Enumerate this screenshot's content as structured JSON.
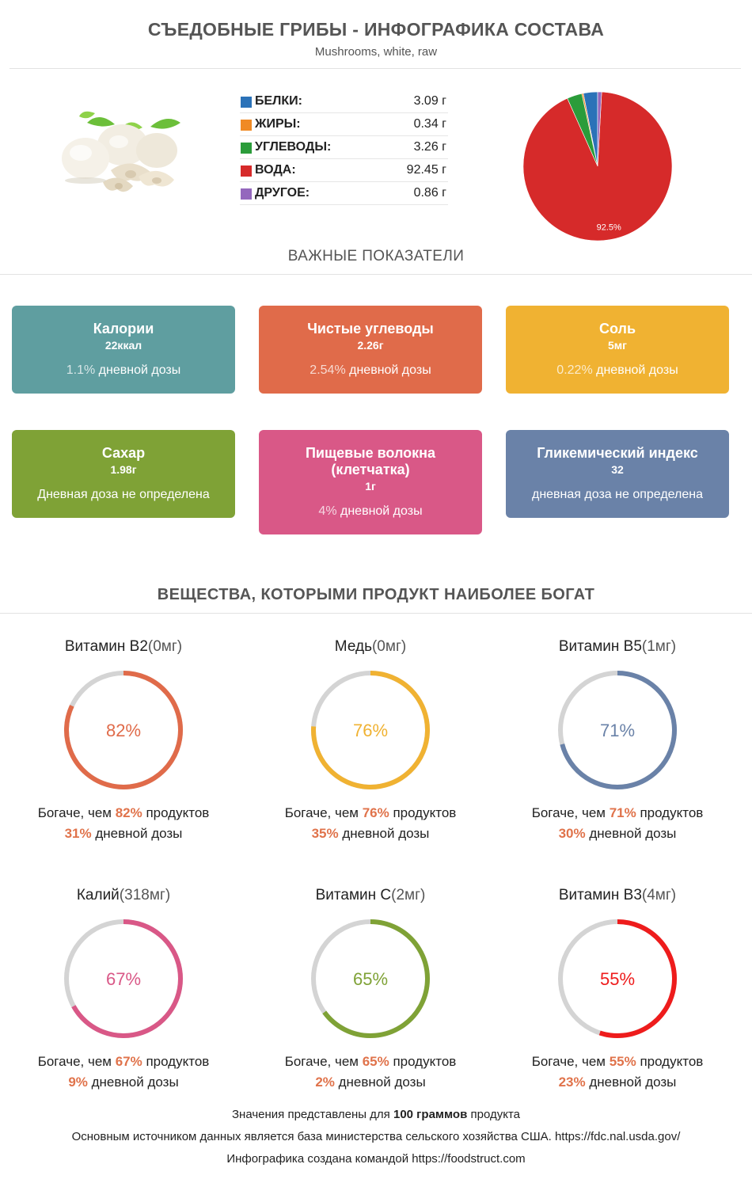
{
  "header": {
    "title": "СЪЕДОБНЫЕ ГРИБЫ - ИНФОГРАФИКА СОСТАВА",
    "subtitle": "Mushrooms, white, raw"
  },
  "macros": [
    {
      "name": "БЕЛКИ:",
      "value": "3.09 г",
      "color": "#2b72b8"
    },
    {
      "name": "ЖИРЫ:",
      "value": "0.34 г",
      "color": "#f08a24"
    },
    {
      "name": "УГЛЕВОДЫ:",
      "value": "3.26 г",
      "color": "#2b9c3a"
    },
    {
      "name": "ВОДА:",
      "value": "92.45 г",
      "color": "#d62a2a"
    },
    {
      "name": "ДРУГОЕ:",
      "value": "0.86 г",
      "color": "#9467bd"
    }
  ],
  "chart_data": {
    "type": "pie",
    "categories": [
      "БЕЛКИ",
      "ЖИРЫ",
      "УГЛЕВОДЫ",
      "ВОДА",
      "ДРУГОЕ"
    ],
    "values": [
      3.09,
      0.34,
      3.26,
      92.45,
      0.86
    ],
    "colors": [
      "#2b72b8",
      "#f08a24",
      "#2b9c3a",
      "#d62a2a",
      "#9467bd"
    ],
    "labels": [
      "",
      "",
      "",
      "92.5%",
      ""
    ]
  },
  "indicators_title": "ВАЖНЫЕ ПОКАЗАТЕЛИ",
  "cards": [
    {
      "title": "Калории",
      "value": "22ккал",
      "pct": "1.1%",
      "pct_text": " дневной дозы",
      "color": "#5f9ea0"
    },
    {
      "title": "Чистые углеводы",
      "value": "2.26г",
      "pct": "2.54%",
      "pct_text": " дневной дозы",
      "color": "#e06b4a"
    },
    {
      "title": "Соль",
      "value": "5мг",
      "pct": "0.22%",
      "pct_text": " дневной дозы",
      "color": "#f0b232"
    },
    {
      "title": "Сахар",
      "value": "1.98г",
      "pct": "",
      "pct_text": "Дневная доза не определена",
      "color": "#7fa236"
    },
    {
      "title": "Пищевые волокна (клетчатка)",
      "value": "1г",
      "pct": "4%",
      "pct_text": " дневной дозы",
      "color": "#d95887"
    },
    {
      "title": "Гликемический индекс",
      "value": "32",
      "pct": "",
      "pct_text": "дневная доза не определена",
      "color": "#6a82a8"
    }
  ],
  "rich_title": "ВЕЩЕСТВА, КОТОРЫМИ ПРОДУКТ НАИБОЛЕЕ БОГАТ",
  "rich": [
    {
      "name": "Витамин B2",
      "unit": "(0мг)",
      "percent": 82,
      "label": "82%",
      "richer": "82%",
      "daily": "31%",
      "color": "#e06b4a"
    },
    {
      "name": "Медь",
      "unit": "(0мг)",
      "percent": 76,
      "label": "76%",
      "richer": "76%",
      "daily": "35%",
      "color": "#f0b232"
    },
    {
      "name": "Витамин B5",
      "unit": "(1мг)",
      "percent": 71,
      "label": "71%",
      "richer": "71%",
      "daily": "30%",
      "color": "#6a82a8"
    },
    {
      "name": "Калий",
      "unit": "(318мг)",
      "percent": 67,
      "label": "67%",
      "richer": "67%",
      "daily": "9%",
      "color": "#d95887"
    },
    {
      "name": "Витамин C",
      "unit": "(2мг)",
      "percent": 65,
      "label": "65%",
      "richer": "65%",
      "daily": "2%",
      "color": "#7fa236"
    },
    {
      "name": "Витамин B3",
      "unit": "(4мг)",
      "percent": 55,
      "label": "55%",
      "richer": "55%",
      "daily": "23%",
      "color": "#ee1c1c"
    }
  ],
  "rich_text": {
    "prefix": "Богаче, чем ",
    "suffix": " продуктов",
    "daily_suffix": " дневной дозы"
  },
  "footer": {
    "line1_prefix": "Значения представлены для ",
    "line1_bold": "100 граммов",
    "line1_suffix": " продукта",
    "line2": "Основным источником данных является база министерства сельского хозяйства США. https://fdc.nal.usda.gov/",
    "line3": "Инфографика создана командой https://foodstruct.com"
  }
}
